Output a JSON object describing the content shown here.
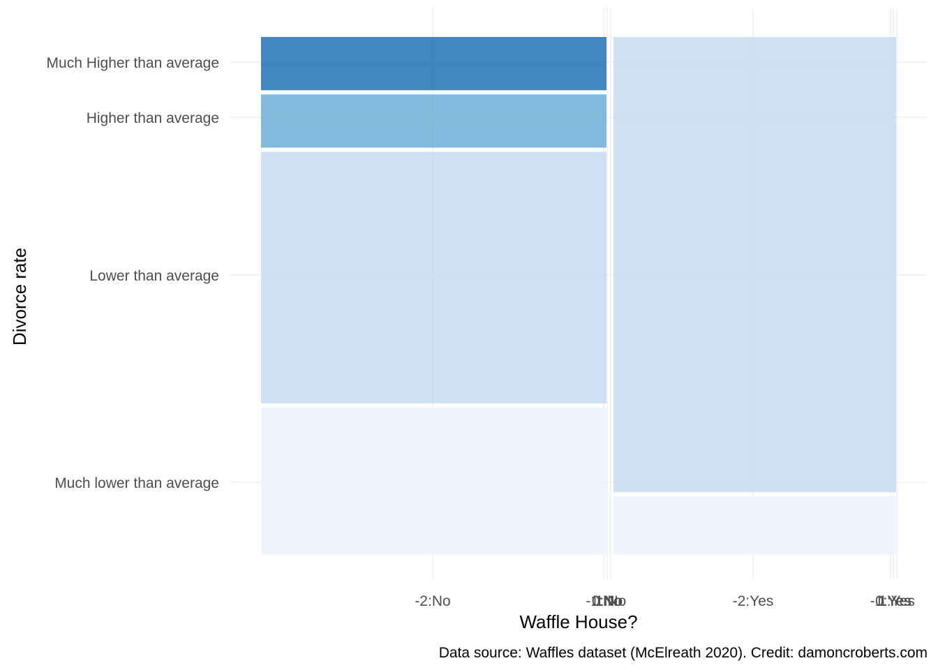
{
  "chart_data": {
    "type": "mosaic",
    "title": "",
    "xlabel": "Waffle House?",
    "ylabel": "Divorce rate",
    "caption": "Data source: Waffles dataset (McElreath 2020). Credit: damoncroberts.com",
    "x_groups": [
      {
        "name": "No",
        "share": 0.55
      },
      {
        "name": "Yes",
        "share": 0.45
      }
    ],
    "x_tick_labels": [
      "-2:No",
      "-1:No",
      "0:No",
      "1:No",
      "-2:Yes",
      "-1:Yes",
      "0:Yes",
      "1:Yes"
    ],
    "y_tick_labels": [
      "Much Higher than average",
      "Higher than average",
      "Lower than average",
      "Much lower than average"
    ],
    "categories": [
      "Much lower than average",
      "Lower than average",
      "Higher than average",
      "Much Higher than average"
    ],
    "series": [
      {
        "group": "No",
        "values": [
          0.29,
          0.49,
          0.11,
          0.11
        ]
      },
      {
        "group": "Yes",
        "values": [
          0.12,
          0.88,
          0.0,
          0.0
        ]
      }
    ],
    "colors": {
      "Much lower than average": "#eff3ff",
      "Lower than average": "#c6dbef",
      "Higher than average": "#6baed6",
      "Much Higher than average": "#2171b5"
    },
    "grid": true,
    "legend": "none"
  }
}
